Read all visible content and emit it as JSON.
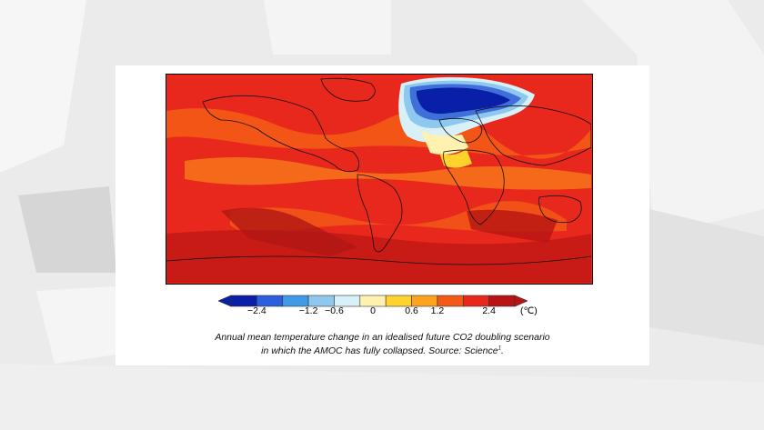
{
  "colorbar": {
    "colors": [
      "#0a1fa8",
      "#2d5ee0",
      "#3f9ae8",
      "#8fc8ef",
      "#d8f0f8",
      "#fff2b0",
      "#ffd22e",
      "#ffa21e",
      "#f35a16",
      "#e8281c",
      "#b81414"
    ],
    "tick_labels": [
      "−2.4",
      "−1.2",
      "−0.6",
      "0",
      "0.6",
      "1.2",
      "2.4"
    ],
    "unit": "(℃)"
  },
  "caption": {
    "line1": "Annual mean temperature change in an idealised future CO2 doubling scenario",
    "line2": "in which the AMOC has fully collapsed. Source: Science",
    "footnote": "1",
    "line2_end": "."
  },
  "map": {
    "base_color": "#e8281c",
    "cold_anomaly_color": "#0a1fa8"
  }
}
